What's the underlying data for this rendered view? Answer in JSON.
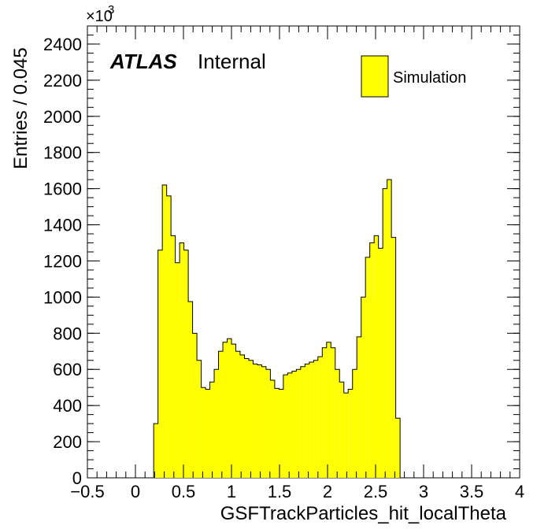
{
  "chart_data": {
    "type": "histogram",
    "xlabel": "GSFTrackParticles_hit_localTheta",
    "ylabel": "Entries / 0.045",
    "y_multiplier": "×10",
    "y_multiplier_exp": "3",
    "xlim": [
      -0.5,
      4.0
    ],
    "ylim": [
      0,
      2500
    ],
    "bin_width": 0.045,
    "x_ticks": [
      -0.5,
      0,
      0.5,
      1,
      1.5,
      2,
      2.5,
      3,
      3.5,
      4
    ],
    "x_tick_labels": [
      "−0.5",
      "0",
      "0.5",
      "1",
      "1.5",
      "2",
      "2.5",
      "3",
      "3.5",
      "4"
    ],
    "y_ticks": [
      0,
      200,
      400,
      600,
      800,
      1000,
      1200,
      1400,
      1600,
      1800,
      2000,
      2200,
      2400
    ],
    "y_tick_labels": [
      "0",
      "200",
      "400",
      "600",
      "800",
      "1000",
      "1200",
      "1400",
      "1600",
      "1800",
      "2000",
      "2200",
      "2400"
    ],
    "bins_start": 0.19,
    "values": [
      300,
      1260,
      1620,
      1560,
      1340,
      1190,
      1300,
      1260,
      975,
      800,
      650,
      500,
      490,
      530,
      600,
      700,
      750,
      770,
      740,
      700,
      680,
      660,
      650,
      630,
      625,
      615,
      600,
      540,
      495,
      490,
      570,
      580,
      590,
      600,
      615,
      630,
      640,
      650,
      670,
      720,
      750,
      720,
      600,
      530,
      470,
      490,
      600,
      780,
      1000,
      1220,
      1300,
      1340,
      1270,
      1600,
      1650,
      1330,
      330
    ],
    "fill_color": "#ffff00",
    "line_color": "#000000",
    "legend": {
      "entries": [
        "Simulation"
      ],
      "placement": "top-right"
    },
    "annotations": {
      "atlas": "ATLAS",
      "internal": "Internal"
    }
  }
}
